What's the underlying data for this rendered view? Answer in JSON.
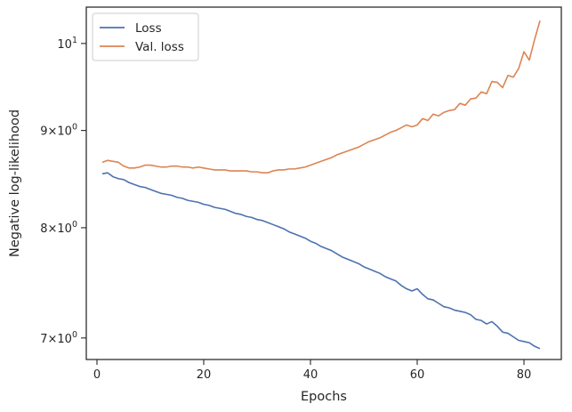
{
  "chart_data": {
    "type": "line",
    "title": "",
    "xlabel": "Epochs",
    "ylabel": "Negative log-likelihood",
    "yscale": "log",
    "xlim": [
      -2,
      87
    ],
    "ylim": [
      6.82,
      10.45
    ],
    "grid": false,
    "legend_position": "top-left",
    "x_ticks": [
      0,
      20,
      40,
      60,
      80
    ],
    "x_tick_labels": [
      "0",
      "20",
      "40",
      "60",
      "80"
    ],
    "y_ticks": [
      {
        "value": 7,
        "base": "7",
        "sep": "×",
        "power_base": "10",
        "exp": "0"
      },
      {
        "value": 8,
        "base": "8",
        "sep": "×",
        "power_base": "10",
        "exp": "0"
      },
      {
        "value": 9,
        "base": "9",
        "sep": "×",
        "power_base": "10",
        "exp": "0"
      },
      {
        "value": 10,
        "base": "",
        "sep": "",
        "power_base": "10",
        "exp": "1"
      }
    ],
    "x": [
      1,
      2,
      3,
      4,
      5,
      6,
      7,
      8,
      9,
      10,
      11,
      12,
      13,
      14,
      15,
      16,
      17,
      18,
      19,
      20,
      21,
      22,
      23,
      24,
      25,
      26,
      27,
      28,
      29,
      30,
      31,
      32,
      33,
      34,
      35,
      36,
      37,
      38,
      39,
      40,
      41,
      42,
      43,
      44,
      45,
      46,
      47,
      48,
      49,
      50,
      51,
      52,
      53,
      54,
      55,
      56,
      57,
      58,
      59,
      60,
      61,
      62,
      63,
      64,
      65,
      66,
      67,
      68,
      69,
      70,
      71,
      72,
      73,
      74,
      75,
      76,
      77,
      78,
      79,
      80,
      81,
      82,
      83
    ],
    "series": [
      {
        "name": "Loss",
        "color": "#4c72b0",
        "values": [
          8.54,
          8.55,
          8.51,
          8.49,
          8.48,
          8.45,
          8.43,
          8.41,
          8.4,
          8.38,
          8.36,
          8.34,
          8.33,
          8.32,
          8.3,
          8.29,
          8.27,
          8.26,
          8.25,
          8.23,
          8.22,
          8.2,
          8.19,
          8.18,
          8.16,
          8.14,
          8.13,
          8.11,
          8.1,
          8.08,
          8.07,
          8.05,
          8.03,
          8.01,
          7.99,
          7.96,
          7.94,
          7.92,
          7.9,
          7.87,
          7.85,
          7.82,
          7.8,
          7.78,
          7.75,
          7.72,
          7.7,
          7.68,
          7.66,
          7.63,
          7.61,
          7.59,
          7.57,
          7.54,
          7.52,
          7.5,
          7.46,
          7.43,
          7.41,
          7.43,
          7.38,
          7.34,
          7.33,
          7.3,
          7.27,
          7.26,
          7.24,
          7.23,
          7.22,
          7.2,
          7.16,
          7.15,
          7.12,
          7.14,
          7.1,
          7.05,
          7.04,
          7.01,
          6.98,
          6.97,
          6.96,
          6.93,
          6.91
        ]
      },
      {
        "name": "Val. loss",
        "color": "#dd8452",
        "values": [
          8.66,
          8.68,
          8.67,
          8.66,
          8.62,
          8.6,
          8.6,
          8.61,
          8.63,
          8.63,
          8.62,
          8.61,
          8.61,
          8.62,
          8.62,
          8.61,
          8.61,
          8.6,
          8.61,
          8.6,
          8.59,
          8.58,
          8.58,
          8.58,
          8.57,
          8.57,
          8.57,
          8.57,
          8.56,
          8.56,
          8.55,
          8.55,
          8.57,
          8.58,
          8.58,
          8.59,
          8.59,
          8.6,
          8.61,
          8.63,
          8.65,
          8.67,
          8.69,
          8.71,
          8.74,
          8.76,
          8.78,
          8.8,
          8.82,
          8.85,
          8.88,
          8.9,
          8.92,
          8.95,
          8.98,
          9.0,
          9.03,
          9.06,
          9.04,
          9.06,
          9.13,
          9.11,
          9.18,
          9.16,
          9.2,
          9.22,
          9.23,
          9.3,
          9.28,
          9.35,
          9.36,
          9.43,
          9.41,
          9.55,
          9.54,
          9.48,
          9.62,
          9.6,
          9.7,
          9.9,
          9.8,
          10.05,
          10.28
        ]
      }
    ]
  }
}
